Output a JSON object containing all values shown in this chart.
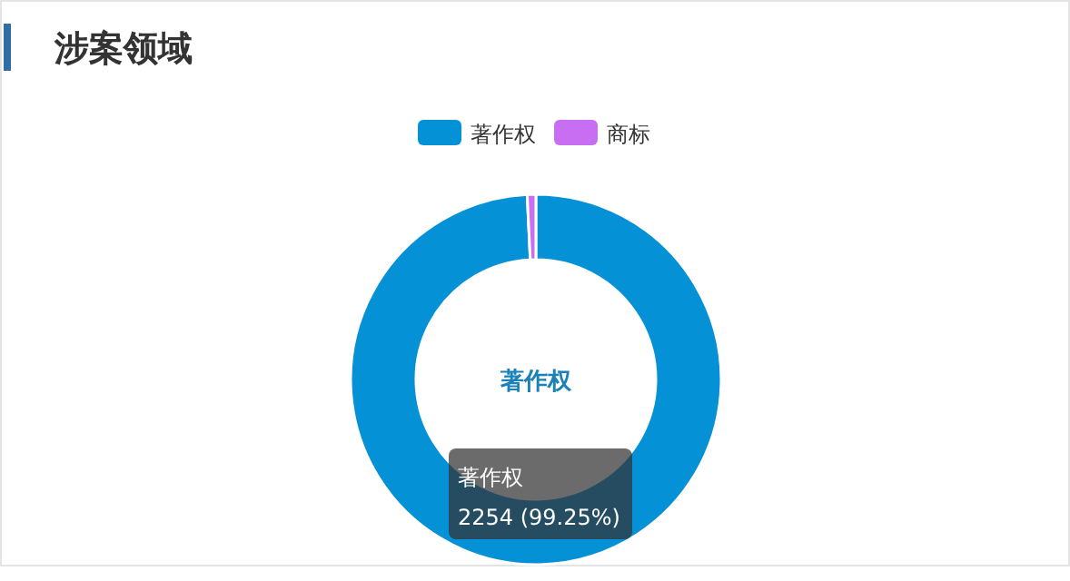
{
  "chart_data": {
    "type": "donut",
    "title": "涉案领域",
    "categories": [
      "著作权",
      "商标"
    ],
    "values": [
      99.25,
      0.75
    ],
    "colors": [
      "#0591d6",
      "#c86ef3"
    ],
    "legend": "top",
    "annotations": [
      "著作权",
      "著作权",
      "2254 (99.25%)"
    ]
  }
}
